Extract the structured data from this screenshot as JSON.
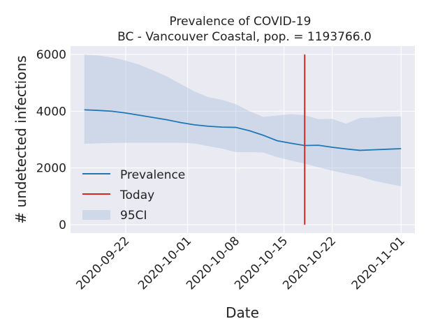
{
  "chart_data": {
    "type": "line",
    "title": "Prevalence of COVID-19",
    "subtitle": "BC - Vancouver Coastal, pop. = 1193766.0",
    "xlabel": "Date",
    "ylabel": "# undetected infections",
    "xlim": [
      "2020-09-14",
      "2020-11-03"
    ],
    "ylim": [
      -300,
      6300
    ],
    "x_ticks": [
      "2020-09-22",
      "2020-10-01",
      "2020-10-08",
      "2020-10-15",
      "2020-10-22",
      "2020-11-01"
    ],
    "y_ticks": [
      0,
      2000,
      4000,
      6000
    ],
    "grid": true,
    "legend_position": "center-left",
    "today": "2020-10-18",
    "today_range": [
      0,
      6000
    ],
    "series": [
      {
        "name": "Prevalence",
        "color": "#1f77b4",
        "x": [
          "2020-09-16",
          "2020-09-18",
          "2020-09-20",
          "2020-09-22",
          "2020-09-24",
          "2020-09-26",
          "2020-09-28",
          "2020-09-30",
          "2020-10-02",
          "2020-10-04",
          "2020-10-06",
          "2020-10-08",
          "2020-10-10",
          "2020-10-12",
          "2020-10-14",
          "2020-10-16",
          "2020-10-18",
          "2020-10-20",
          "2020-10-22",
          "2020-10-24",
          "2020-10-26",
          "2020-10-28",
          "2020-10-30",
          "2020-11-01"
        ],
        "values": [
          4050,
          4030,
          4000,
          3940,
          3860,
          3780,
          3700,
          3600,
          3520,
          3470,
          3440,
          3430,
          3310,
          3150,
          2960,
          2870,
          2790,
          2800,
          2730,
          2670,
          2620,
          2640,
          2660,
          2680
        ]
      }
    ],
    "band": {
      "name": "95CI",
      "color": "#b0c4de",
      "x": [
        "2020-09-16",
        "2020-09-18",
        "2020-09-20",
        "2020-09-22",
        "2020-09-24",
        "2020-09-26",
        "2020-09-28",
        "2020-09-30",
        "2020-10-02",
        "2020-10-04",
        "2020-10-06",
        "2020-10-08",
        "2020-10-10",
        "2020-10-12",
        "2020-10-14",
        "2020-10-16",
        "2020-10-18",
        "2020-10-20",
        "2020-10-22",
        "2020-10-24",
        "2020-10-26",
        "2020-10-28",
        "2020-10-30",
        "2020-11-01"
      ],
      "upper": [
        6000,
        5970,
        5900,
        5790,
        5640,
        5440,
        5230,
        4960,
        4700,
        4500,
        4400,
        4250,
        4000,
        3800,
        3850,
        3900,
        3860,
        3720,
        3730,
        3560,
        3760,
        3780,
        3810,
        3820
      ],
      "lower": [
        2850,
        2870,
        2880,
        2890,
        2890,
        2890,
        2890,
        2890,
        2860,
        2770,
        2680,
        2560,
        2560,
        2540,
        2380,
        2260,
        2150,
        2020,
        1900,
        1800,
        1700,
        1550,
        1450,
        1350
      ]
    }
  }
}
